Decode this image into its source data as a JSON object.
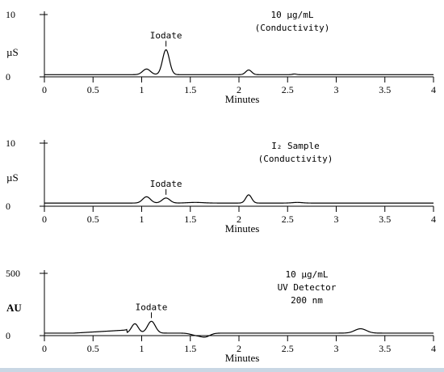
{
  "chart_data": [
    {
      "type": "line",
      "xlabel": "Minutes",
      "ylabel": "µS",
      "xlim": [
        0,
        4
      ],
      "ylim": [
        0,
        10
      ],
      "xticks": [
        "0",
        "0.5",
        "1",
        "1.5",
        "2",
        "2.5",
        "3",
        "3.5",
        "4"
      ],
      "yticks": [
        "0",
        "10"
      ],
      "legend": [
        "10 µg/mL",
        "(Conductivity)"
      ],
      "annotations": [
        {
          "text": "Iodate",
          "x": 1.25
        }
      ],
      "trace": {
        "baseline": 0.35,
        "peaks": [
          {
            "x": 1.05,
            "height": 0.9,
            "width": 0.04
          },
          {
            "x": 1.25,
            "height": 4.0,
            "width": 0.035
          },
          {
            "x": 2.1,
            "height": 0.75,
            "width": 0.03
          },
          {
            "x": 2.57,
            "height": 0.1,
            "width": 0.02
          }
        ]
      }
    },
    {
      "type": "line",
      "xlabel": "Minutes",
      "ylabel": "µS",
      "xlim": [
        0,
        4
      ],
      "ylim": [
        0,
        10
      ],
      "xticks": [
        "0",
        "0.5",
        "1",
        "1.5",
        "2",
        "2.5",
        "3",
        "3.5",
        "4"
      ],
      "yticks": [
        "0",
        "10"
      ],
      "legend": [
        "I₂ Sample",
        "(Conductivity)"
      ],
      "annotations": [
        {
          "text": "Iodate",
          "x": 1.25
        }
      ],
      "trace": {
        "baseline": 0.5,
        "peaks": [
          {
            "x": 1.05,
            "height": 1.0,
            "width": 0.04
          },
          {
            "x": 1.25,
            "height": 0.8,
            "width": 0.04
          },
          {
            "x": 1.55,
            "height": 0.1,
            "width": 0.08
          },
          {
            "x": 2.1,
            "height": 1.3,
            "width": 0.03
          },
          {
            "x": 2.6,
            "height": 0.1,
            "width": 0.05
          }
        ]
      }
    },
    {
      "type": "line",
      "xlabel": "Minutes",
      "ylabel": "AU",
      "xlim": [
        0,
        4
      ],
      "ylim": [
        0,
        500
      ],
      "xticks": [
        "0",
        "0.5",
        "1",
        "1.5",
        "2",
        "2.5",
        "3",
        "3.5",
        "4"
      ],
      "yticks": [
        "0",
        "500"
      ],
      "legend": [
        "10 µg/mL",
        "UV Detector",
        "200 nm"
      ],
      "annotations": [
        {
          "text": "Iodate",
          "x": 1.1
        }
      ],
      "trace": {
        "baseline": 20,
        "segments": [
          {
            "x0": 0.3,
            "x1": 0.85,
            "y0": 20,
            "y1": 45
          }
        ],
        "peaks": [
          {
            "x": 0.93,
            "height": 75,
            "width": 0.035
          },
          {
            "x": 1.1,
            "height": 95,
            "width": 0.04
          },
          {
            "x": 1.55,
            "height": -15,
            "width": 0.05
          },
          {
            "x": 1.65,
            "height": -30,
            "width": 0.05
          },
          {
            "x": 3.25,
            "height": 35,
            "width": 0.06
          }
        ]
      }
    }
  ]
}
